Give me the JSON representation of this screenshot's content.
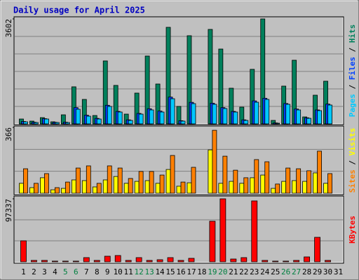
{
  "chart_data": {
    "type": "bar",
    "title": "Daily usage for April 2025",
    "categories": [
      "1",
      "2",
      "3",
      "4",
      "5",
      "6",
      "7",
      "8",
      "9",
      "10",
      "11",
      "12",
      "13",
      "14",
      "15",
      "16",
      "17",
      "18",
      "19",
      "20",
      "21",
      "22",
      "23",
      "24",
      "25",
      "26",
      "27",
      "28",
      "29",
      "30",
      "31"
    ],
    "category_colors": [
      "#000000",
      "#000000",
      "#000000",
      "#000000",
      "#008040",
      "#008040",
      "#000000",
      "#000000",
      "#000000",
      "#000000",
      "#000000",
      "#008040",
      "#008040",
      "#000000",
      "#000000",
      "#000000",
      "#000000",
      "#000000",
      "#008040",
      "#008040",
      "#000000",
      "#000000",
      "#000000",
      "#000000",
      "#000000",
      "#008040",
      "#008040",
      "#000000",
      "#000000",
      "#000000",
      "#000000"
    ],
    "legend_separator": " / ",
    "grid": true,
    "panels": [
      {
        "ylim": [
          0,
          3602
        ],
        "yticks": [
          3602
        ],
        "series": [
          {
            "name": "Hits",
            "color": "#00805c",
            "values": [
              168,
              96,
              216,
              72,
              312,
              1273,
              840,
              288,
              2161,
              1321,
              336,
              1057,
              2329,
              1369,
              3314,
              600,
              3026,
              0,
              3242,
              2569,
              1225,
              576,
              1873,
              3602,
              120,
              1297,
              2185,
              240,
              985,
              1465,
              null
            ]
          },
          {
            "name": "Files",
            "color": "#0040ff",
            "values": [
              84,
              60,
              180,
              56,
              60,
              560,
              300,
              190,
              640,
              430,
              140,
              360,
              520,
              440,
              920,
              110,
              740,
              0,
              710,
              560,
              430,
              140,
              790,
              880,
              34,
              700,
              510,
              210,
              480,
              680,
              null
            ]
          },
          {
            "name": "Pages",
            "color": "#00c8ff",
            "values": [
              72,
              48,
              168,
              48,
              48,
              504,
              264,
              168,
              600,
              408,
              120,
              336,
              480,
              408,
              864,
              96,
              696,
              0,
              672,
              528,
              408,
              120,
              744,
              840,
              24,
              672,
              480,
              192,
              456,
              648,
              null
            ]
          }
        ]
      },
      {
        "ylim": [
          0,
          366
        ],
        "yticks": [
          366
        ],
        "series": [
          {
            "name": "Visits",
            "color": "#ffff00",
            "values": [
              55,
              31,
              86,
              19,
              27,
              74,
              70,
              35,
              74,
              93,
              55,
              66,
              70,
              55,
              132,
              39,
              58,
              0,
              241,
              55,
              66,
              55,
              86,
              101,
              27,
              66,
              70,
              66,
              113,
              55,
              null
            ]
          },
          {
            "name": "Sites",
            "color": "#ff8000",
            "values": [
              136,
              55,
              109,
              31,
              62,
              140,
              152,
              55,
              152,
              140,
              82,
              121,
              121,
              101,
              210,
              62,
              144,
              0,
              350,
              206,
              128,
              86,
              187,
              175,
              51,
              140,
              136,
              125,
              234,
              109,
              null
            ]
          }
        ]
      },
      {
        "ylim": [
          0,
          97337
        ],
        "yticks": [
          97337
        ],
        "series": [
          {
            "name": "KBytes",
            "color": "#ff0000",
            "values": [
              32446,
              2163,
              2163,
              1082,
              1082,
              1082,
              6489,
              2163,
              8652,
              9734,
              2163,
              6489,
              2163,
              3245,
              6489,
              2163,
              5408,
              0,
              62728,
              97337,
              4326,
              6489,
              94093,
              2163,
              1082,
              1082,
              2163,
              7571,
              37853,
              2163,
              null
            ]
          }
        ]
      }
    ]
  }
}
